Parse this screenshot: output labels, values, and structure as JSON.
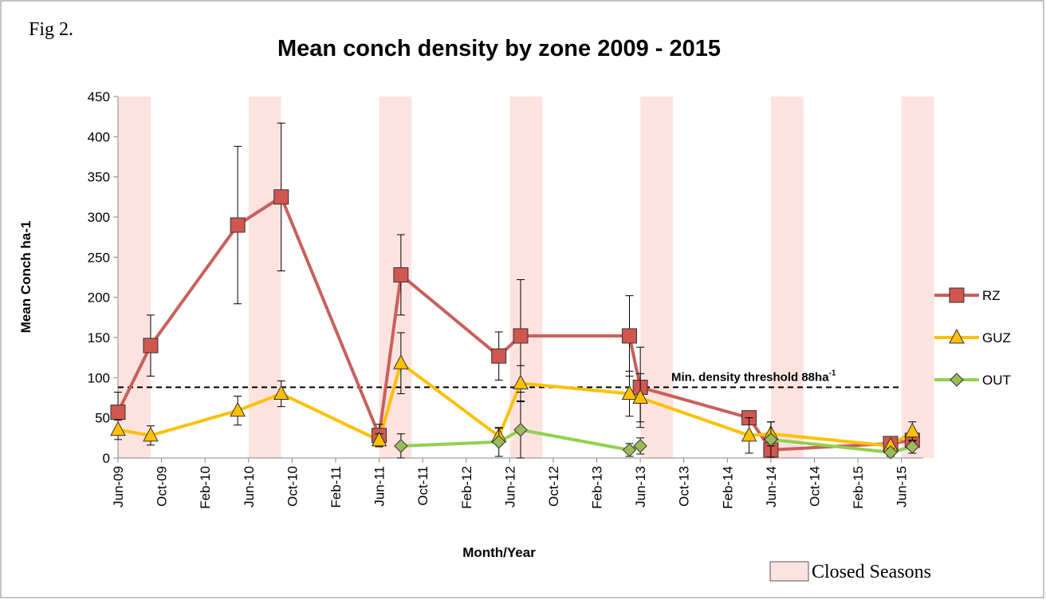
{
  "chart_data": {
    "type": "line",
    "figure_label": "Fig 2.",
    "title": "Mean conch density by zone 2009 - 2015",
    "y_label": "Mean Conch ha-1",
    "x_label": "Month/Year",
    "x": [
      "Jun-09",
      "Sep-09",
      "May-10",
      "Sep-10",
      "Jun-11",
      "Aug-11",
      "May-12",
      "Jul-12",
      "May-13",
      "Jun-13",
      "Apr-14",
      "Jun-14",
      "May-15",
      "Jul-15"
    ],
    "series": [
      {
        "name": "RZ",
        "color": "#c9605c",
        "marker": "square",
        "marker_color": "#d0574f",
        "values": [
          57,
          140,
          290,
          325,
          28,
          228,
          127,
          152,
          152,
          88,
          50,
          10,
          18,
          22
        ],
        "errors": [
          25,
          38,
          98,
          92,
          14,
          50,
          30,
          70,
          50,
          50,
          null,
          null,
          null,
          null
        ]
      },
      {
        "name": "GUZ",
        "color": "#ffc000",
        "marker": "triangle",
        "marker_color": "#ffc000",
        "values": [
          35,
          28,
          59,
          80,
          22,
          118,
          27,
          93,
          80,
          75,
          28,
          30,
          15,
          33
        ],
        "errors": [
          12,
          12,
          18,
          16,
          8,
          38,
          10,
          22,
          28,
          30,
          22,
          15,
          null,
          12
        ]
      },
      {
        "name": "OUT",
        "color": "#92d050",
        "marker": "diamond",
        "marker_color": "#9bbb59",
        "values": [
          null,
          null,
          null,
          null,
          null,
          15,
          20,
          35,
          10,
          15,
          null,
          23,
          7,
          14
        ],
        "errors": [
          null,
          null,
          null,
          null,
          null,
          15,
          18,
          35,
          8,
          10,
          null,
          22,
          5,
          8
        ]
      }
    ],
    "threshold": 88,
    "threshold_label": "Min. density threshold 88ha",
    "threshold_label_sup": "-1",
    "closed_seasons": [
      [
        "Jun-09",
        "Sep-09"
      ],
      [
        "Jun-10",
        "Sep-10"
      ],
      [
        "Jun-11",
        "Sep-11"
      ],
      [
        "Jun-12",
        "Sep-12"
      ],
      [
        "Jun-13",
        "Sep-13"
      ],
      [
        "Jun-14",
        "Sep-14"
      ],
      [
        "Jun-15",
        "Sep-15"
      ]
    ],
    "closed_seasons_color": "#fde3e0",
    "closed_seasons_label": "Closed Seasons",
    "xlim": [
      "Jun-09",
      "Aug-15"
    ],
    "xticks": [
      "Jun-09",
      "Oct-09",
      "Feb-10",
      "Jun-10",
      "Oct-10",
      "Feb-11",
      "Jun-11",
      "Oct-11",
      "Feb-12",
      "Jun-12",
      "Oct-12",
      "Feb-13",
      "Jun-13",
      "Oct-13",
      "Feb-14",
      "Jun-14",
      "Oct-14",
      "Feb-15",
      "Jun-15"
    ],
    "ylim": [
      0,
      450
    ],
    "yticks": [
      0,
      50,
      100,
      150,
      200,
      250,
      300,
      350,
      400,
      450
    ],
    "legend": "right"
  }
}
